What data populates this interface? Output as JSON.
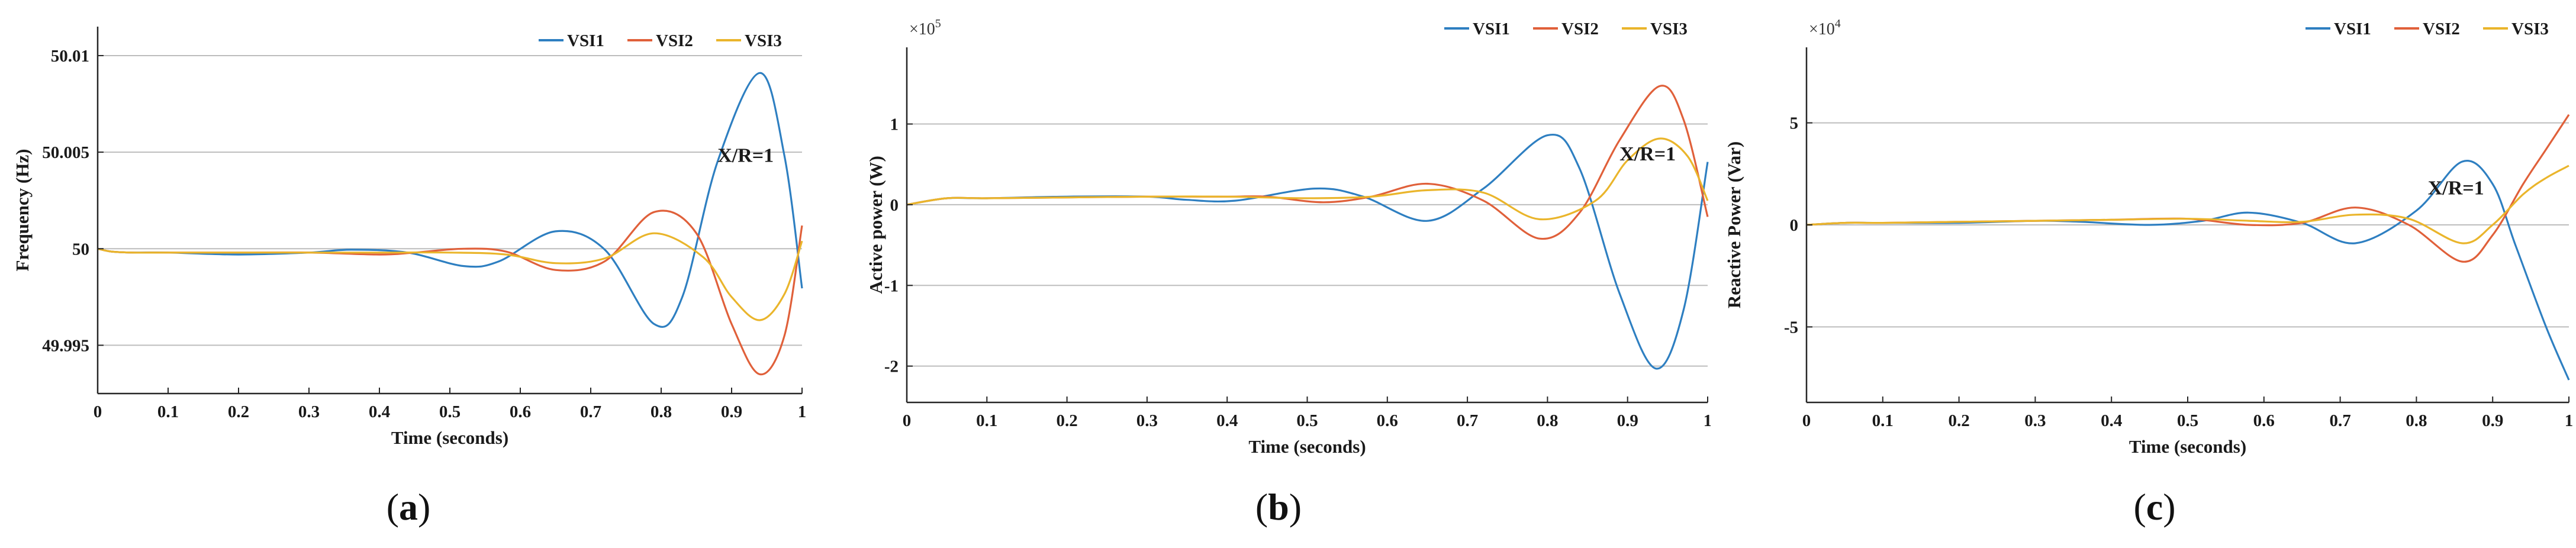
{
  "colors": {
    "VSI1": "#2e7fc1",
    "VSI2": "#e0603a",
    "VSI3": "#eab52b"
  },
  "chart_data": [
    {
      "type": "line",
      "caption_letter": "a",
      "xlabel": "Time (seconds)",
      "ylabel": "Frequency (Hz)",
      "exponent": "",
      "annotation": "X/R=1",
      "annotation_at": [
        0.88,
        50.0045
      ],
      "xlim": [
        0,
        1
      ],
      "ylim": [
        49.9925,
        50.0115
      ],
      "xticks": [
        0,
        0.1,
        0.2,
        0.3,
        0.4,
        0.5,
        0.6,
        0.7,
        0.8,
        0.9,
        1
      ],
      "xtick_labels": [
        "0",
        "0.1",
        "0.2",
        "0.3",
        "0.4",
        "0.5",
        "0.6",
        "0.7",
        "0.8",
        "0.9",
        "1"
      ],
      "yticks": [
        49.995,
        50,
        50.005,
        50.01
      ],
      "ytick_labels": [
        "49.995",
        "50",
        "50.005",
        "50.01"
      ],
      "legend": [
        "VSI1",
        "VSI2",
        "VSI3"
      ],
      "series": [
        {
          "name": "VSI1",
          "x": [
            0,
            0.02,
            0.05,
            0.1,
            0.2,
            0.3,
            0.36,
            0.44,
            0.52,
            0.57,
            0.65,
            0.72,
            0.79,
            0.83,
            0.88,
            0.94,
            0.975,
            1.0
          ],
          "y": [
            50.0,
            49.99985,
            49.9998,
            49.9998,
            49.9997,
            49.9998,
            49.99995,
            49.9998,
            49.9991,
            49.99935,
            50.0009,
            49.99995,
            49.9961,
            49.9975,
            50.0045,
            50.0091,
            50.0048,
            49.99795
          ]
        },
        {
          "name": "VSI2",
          "x": [
            0,
            0.02,
            0.05,
            0.1,
            0.2,
            0.3,
            0.4,
            0.45,
            0.52,
            0.58,
            0.65,
            0.72,
            0.79,
            0.85,
            0.9,
            0.94,
            0.975,
            1.0
          ],
          "y": [
            50.0,
            49.99985,
            49.9998,
            49.9998,
            49.9998,
            49.9998,
            49.9997,
            49.9998,
            50.0,
            49.99985,
            49.9989,
            49.99935,
            50.0019,
            50.0008,
            49.9961,
            49.9935,
            49.9955,
            50.0012
          ]
        },
        {
          "name": "VSI3",
          "x": [
            0,
            0.02,
            0.05,
            0.1,
            0.2,
            0.3,
            0.4,
            0.5,
            0.58,
            0.65,
            0.72,
            0.79,
            0.86,
            0.9,
            0.94,
            0.975,
            1.0
          ],
          "y": [
            50.0,
            49.99985,
            49.9998,
            49.9998,
            49.9998,
            49.9998,
            49.9998,
            49.9998,
            49.9997,
            49.99925,
            49.9995,
            50.0008,
            49.99955,
            49.9975,
            49.9963,
            49.99765,
            50.0004
          ]
        }
      ]
    },
    {
      "type": "line",
      "caption_letter": "b",
      "xlabel": "Time (seconds)",
      "ylabel": "Active power (W)",
      "exponent": "×10",
      "exponent_power": "5",
      "annotation": "X/R=1",
      "annotation_at": [
        0.89,
        0.55
      ],
      "xlim": [
        0,
        1
      ],
      "ylim": [
        -2.45,
        1.95
      ],
      "xticks": [
        0,
        0.1,
        0.2,
        0.3,
        0.4,
        0.5,
        0.6,
        0.7,
        0.8,
        0.9,
        1
      ],
      "xtick_labels": [
        "0",
        "0.1",
        "0.2",
        "0.3",
        "0.4",
        "0.5",
        "0.6",
        "0.7",
        "0.8",
        "0.9",
        "1"
      ],
      "yticks": [
        -2,
        -1,
        0,
        1
      ],
      "ytick_labels": [
        "-2",
        "-1",
        "0",
        "1"
      ],
      "legend": [
        "VSI1",
        "VSI2",
        "VSI3"
      ],
      "series": [
        {
          "name": "VSI1",
          "x": [
            0,
            0.05,
            0.1,
            0.2,
            0.3,
            0.35,
            0.41,
            0.51,
            0.57,
            0.65,
            0.72,
            0.8,
            0.84,
            0.89,
            0.935,
            0.97,
            1.0
          ],
          "y": [
            0.0,
            0.08,
            0.08,
            0.1,
            0.1,
            0.06,
            0.05,
            0.2,
            0.1,
            -0.2,
            0.2,
            0.86,
            0.45,
            -1.1,
            -2.03,
            -1.3,
            0.53
          ]
        },
        {
          "name": "VSI2",
          "x": [
            0,
            0.05,
            0.1,
            0.2,
            0.3,
            0.4,
            0.45,
            0.52,
            0.58,
            0.65,
            0.72,
            0.79,
            0.84,
            0.89,
            0.94,
            0.97,
            1.0
          ],
          "y": [
            0.0,
            0.08,
            0.08,
            0.09,
            0.1,
            0.1,
            0.1,
            0.03,
            0.1,
            0.26,
            0.05,
            -0.42,
            -0.1,
            0.8,
            1.47,
            1.05,
            -0.15
          ]
        },
        {
          "name": "VSI3",
          "x": [
            0,
            0.05,
            0.1,
            0.2,
            0.3,
            0.4,
            0.5,
            0.58,
            0.65,
            0.72,
            0.79,
            0.86,
            0.9,
            0.94,
            0.975,
            1.0
          ],
          "y": [
            0.0,
            0.08,
            0.08,
            0.09,
            0.1,
            0.1,
            0.08,
            0.1,
            0.18,
            0.15,
            -0.18,
            0.05,
            0.55,
            0.82,
            0.6,
            0.05
          ]
        }
      ]
    },
    {
      "type": "line",
      "caption_letter": "c",
      "xlabel": "Time (seconds)",
      "ylabel": "Reactive Power (Var)",
      "exponent": "×10",
      "exponent_power": "4",
      "annotation": "X/R=1",
      "annotation_at": [
        0.815,
        1.5
      ],
      "xlim": [
        0,
        1
      ],
      "ylim": [
        -8.7,
        8.7
      ],
      "xticks": [
        0,
        0.1,
        0.2,
        0.3,
        0.4,
        0.5,
        0.6,
        0.7,
        0.8,
        0.9,
        1
      ],
      "xtick_labels": [
        "0",
        "0.1",
        "0.2",
        "0.3",
        "0.4",
        "0.5",
        "0.6",
        "0.7",
        "0.8",
        "0.9",
        "1"
      ],
      "yticks": [
        -5,
        0,
        5
      ],
      "ytick_labels": [
        "-5",
        "0",
        "5"
      ],
      "legend": [
        "VSI1",
        "VSI2",
        "VSI3"
      ],
      "series": [
        {
          "name": "VSI1",
          "x": [
            0,
            0.05,
            0.1,
            0.2,
            0.3,
            0.36,
            0.45,
            0.52,
            0.58,
            0.65,
            0.72,
            0.8,
            0.86,
            0.9,
            0.93,
            0.97,
            1.0
          ],
          "y": [
            0.0,
            0.1,
            0.1,
            0.1,
            0.2,
            0.15,
            0.0,
            0.2,
            0.6,
            0.1,
            -0.9,
            0.7,
            3.1,
            2.0,
            -1.0,
            -5.0,
            -7.6
          ]
        },
        {
          "name": "VSI2",
          "x": [
            0,
            0.05,
            0.1,
            0.2,
            0.3,
            0.4,
            0.5,
            0.58,
            0.65,
            0.72,
            0.79,
            0.86,
            0.9,
            0.94,
            0.97,
            1.0
          ],
          "y": [
            0.0,
            0.1,
            0.1,
            0.15,
            0.2,
            0.25,
            0.3,
            0.0,
            0.1,
            0.85,
            0.0,
            -1.8,
            -0.5,
            2.0,
            3.7,
            5.4
          ]
        },
        {
          "name": "VSI3",
          "x": [
            0,
            0.05,
            0.1,
            0.2,
            0.3,
            0.4,
            0.5,
            0.58,
            0.65,
            0.72,
            0.79,
            0.86,
            0.9,
            0.94,
            0.97,
            1.0
          ],
          "y": [
            0.0,
            0.1,
            0.1,
            0.15,
            0.2,
            0.25,
            0.3,
            0.2,
            0.15,
            0.5,
            0.3,
            -0.9,
            0.0,
            1.5,
            2.3,
            2.9
          ]
        }
      ]
    }
  ]
}
